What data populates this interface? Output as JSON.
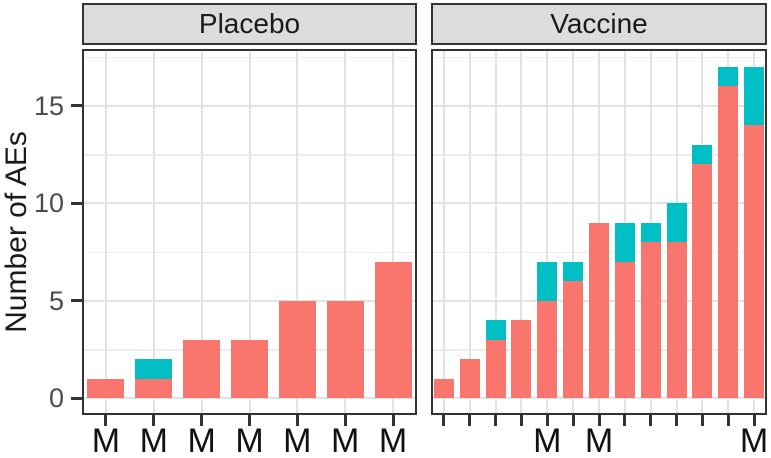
{
  "figure": {
    "y_axis_title": "Number of AEs"
  },
  "colors": {
    "bar_primary": "#F8766D",
    "bar_secondary": "#00BFC4",
    "strip_bg": "#DCDCDC",
    "panel_border": "#333333",
    "grid_major": "#E3E3E3",
    "grid_minor": "#EDEDED",
    "tick": "#333333",
    "axis_text_y": "#4D4D4D",
    "axis_text_x": "#111111"
  },
  "chart_data": {
    "type": "bar",
    "stacked": true,
    "title": "",
    "xlabel": "",
    "ylabel": "Number of AEs",
    "y_ticks": [
      0,
      5,
      10,
      15
    ],
    "y_minor_gridlines": [
      2.5,
      7.5,
      12.5,
      17.5
    ],
    "y_range": [
      -0.85,
      17.92
    ],
    "grid": true,
    "legend": "none",
    "facets": [
      {
        "label": "Placebo",
        "x_tick_labels": [
          "M",
          "M",
          "M",
          "M",
          "M",
          "M",
          "M"
        ],
        "series": [
          {
            "name": "primary",
            "color": "#F8766D",
            "values": [
              1,
              1,
              3,
              3,
              5,
              5,
              7
            ]
          },
          {
            "name": "secondary",
            "color": "#00BFC4",
            "values": [
              0,
              1,
              0,
              0,
              0,
              0,
              0
            ]
          }
        ],
        "totals": [
          1,
          2,
          3,
          3,
          5,
          5,
          7
        ]
      },
      {
        "label": "Vaccine",
        "x_tick_labels": [
          "",
          "",
          "",
          "",
          "M",
          "",
          "M",
          "",
          "",
          "",
          "",
          "",
          "M"
        ],
        "series": [
          {
            "name": "primary",
            "color": "#F8766D",
            "values": [
              1,
              2,
              3,
              4,
              5,
              6,
              9,
              7,
              8,
              8,
              12,
              16,
              14
            ]
          },
          {
            "name": "secondary",
            "color": "#00BFC4",
            "values": [
              0,
              0,
              1,
              0,
              2,
              1,
              0,
              2,
              1,
              2,
              1,
              1,
              3
            ]
          }
        ],
        "totals": [
          1,
          2,
          4,
          4,
          7,
          7,
          9,
          9,
          9,
          10,
          13,
          17,
          17
        ]
      }
    ]
  }
}
